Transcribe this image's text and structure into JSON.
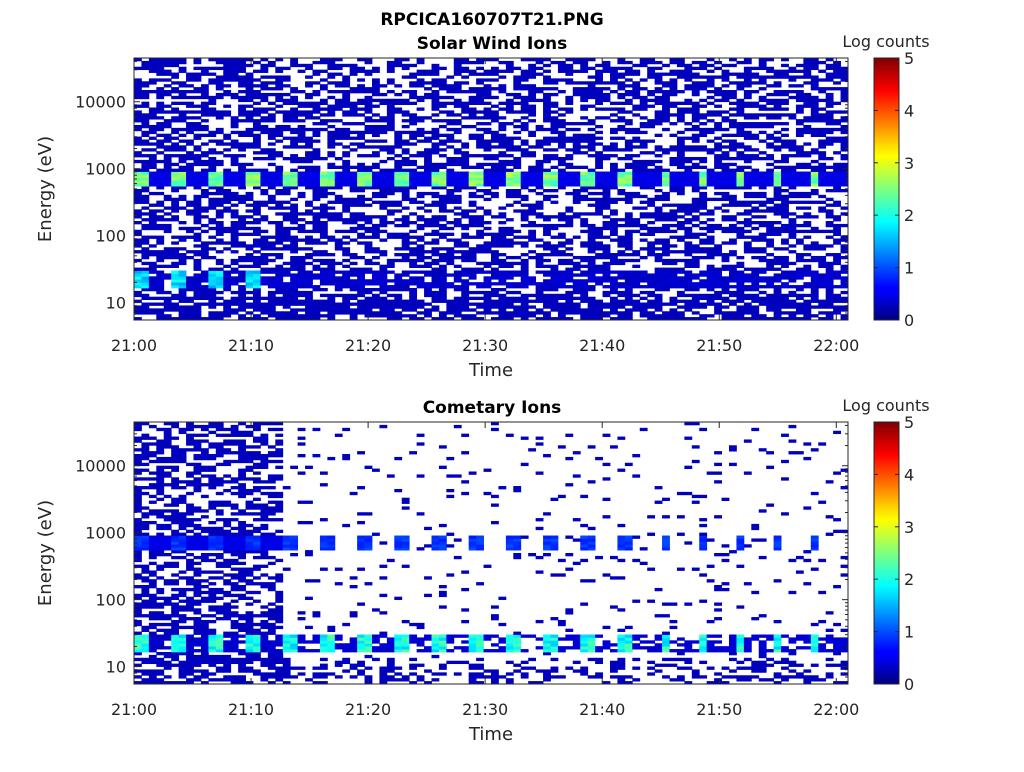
{
  "figure": {
    "title": "RPCICA160707T21.PNG"
  },
  "colorbar": {
    "label": "Log counts",
    "ticks": [
      "0",
      "1",
      "2",
      "3",
      "4",
      "5"
    ],
    "range": [
      0,
      5
    ],
    "colormap": "jet"
  },
  "chart_data": [
    {
      "type": "heatmap",
      "title": "Solar Wind Ions",
      "xlabel": "Time",
      "ylabel": "Energy (eV)",
      "x_ticks": [
        "21:00",
        "21:10",
        "21:20",
        "21:30",
        "21:40",
        "21:50",
        "22:00"
      ],
      "x_range_minutes": [
        0,
        61
      ],
      "y_scale": "log",
      "y_ticks": [
        10,
        100,
        1000,
        10000
      ],
      "y_tick_labels": [
        "10",
        "100",
        "1000",
        "10000"
      ],
      "y_range": [
        5.5,
        45000
      ],
      "z_label": "Log counts",
      "z_range": [
        0,
        5
      ],
      "features": {
        "background_level": 0.3,
        "sweep_period_min": 3.2,
        "peak_band_energy_eV": 700,
        "peak_band_level": 2.8,
        "low_band_energy_eV": 22,
        "low_band_level": 2.0,
        "low_band_end_min": 13
      }
    },
    {
      "type": "heatmap",
      "title": "Cometary Ions",
      "xlabel": "Time",
      "ylabel": "Energy (eV)",
      "x_ticks": [
        "21:00",
        "21:10",
        "21:20",
        "21:30",
        "21:40",
        "21:50",
        "22:00"
      ],
      "x_range_minutes": [
        0,
        61
      ],
      "y_scale": "log",
      "y_ticks": [
        10,
        100,
        1000,
        10000
      ],
      "y_tick_labels": [
        "10",
        "100",
        "1000",
        "10000"
      ],
      "y_range": [
        5.5,
        45000
      ],
      "z_label": "Log counts",
      "z_range": [
        0,
        5
      ],
      "features": {
        "background_level": 0.3,
        "dense_until_min": 13,
        "sweep_period_min": 3.2,
        "peak_band_energy_eV": 700,
        "peak_band_level": 1.0,
        "low_band_energy_eV": 22,
        "low_band_level": 2.3
      }
    }
  ]
}
